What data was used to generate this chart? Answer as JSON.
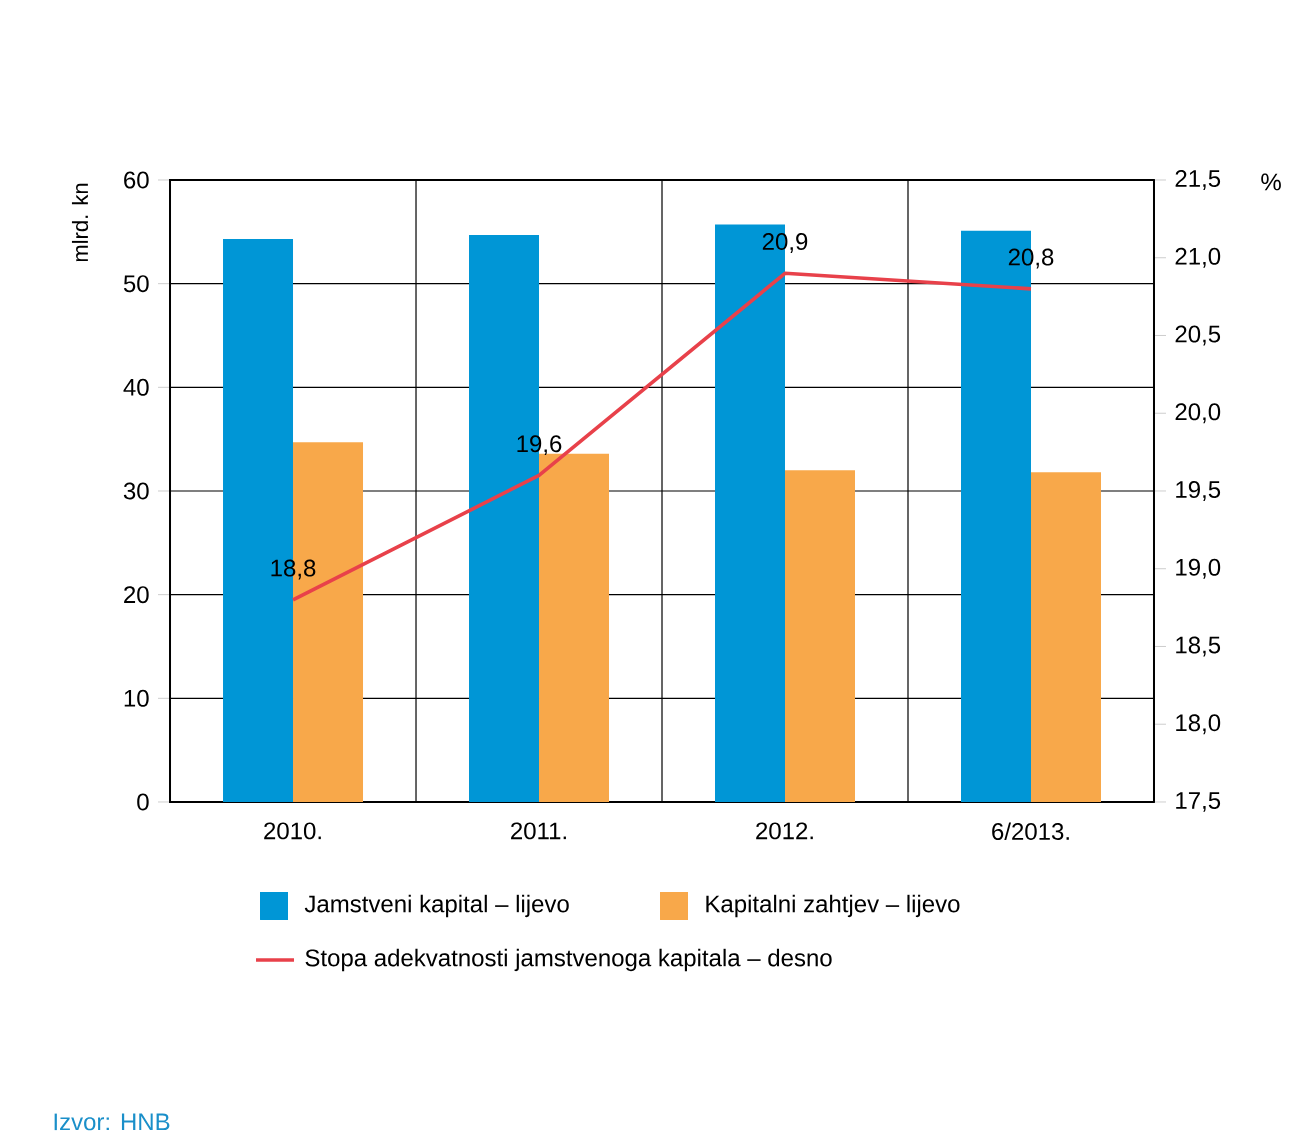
{
  "chart_data": {
    "type": "bar",
    "ylabel": "mlrd. kn",
    "y2label": "%",
    "categories": [
      "2010.",
      "2011.",
      "2012.",
      "6/2013."
    ],
    "series": [
      {
        "name": "Jamstveni kapital – lijevo",
        "color": "#0096d6",
        "values": [
          54.3,
          54.7,
          55.7,
          55.1
        ]
      },
      {
        "name": "Kapitalni zahtjev – lijevo",
        "color": "#f8a84a",
        "values": [
          34.7,
          33.6,
          32.0,
          31.8
        ]
      },
      {
        "name": "Stopa adekvatnosti jamstvenoga kapitala – desno",
        "type": "line",
        "axis": "y2",
        "color": "#e8414a",
        "values": [
          18.8,
          19.6,
          20.9,
          20.8
        ],
        "value_labels": [
          "18,8",
          "19,6",
          "20,9",
          "20,8"
        ]
      }
    ],
    "ylim": [
      0,
      60
    ],
    "yticks": [
      0,
      10,
      20,
      30,
      40,
      50,
      60
    ],
    "y2lim": [
      17.5,
      21.5
    ],
    "y2ticks": [
      {
        "value": 17.5,
        "label": "17,5"
      },
      {
        "value": 18.0,
        "label": "18,0"
      },
      {
        "value": 18.5,
        "label": "18,5"
      },
      {
        "value": 19.0,
        "label": "19,0"
      },
      {
        "value": 19.5,
        "label": "19,5"
      },
      {
        "value": 20.0,
        "label": "20,0"
      },
      {
        "value": 20.5,
        "label": "20,5"
      },
      {
        "value": 21.0,
        "label": "21,0"
      },
      {
        "value": 21.5,
        "label": "21,5"
      }
    ],
    "grid": true,
    "legend": "bottom",
    "annotations": [
      "Izvor: HNB"
    ]
  }
}
